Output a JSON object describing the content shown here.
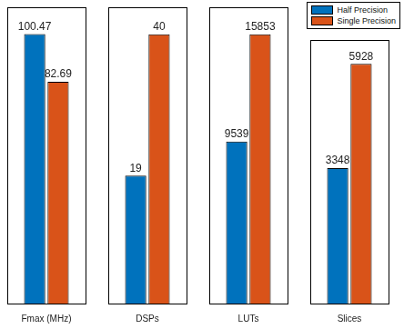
{
  "chart_data": [
    {
      "type": "bar",
      "categories": [
        "Fmax (MHz)"
      ],
      "series": [
        {
          "name": "Half Precision",
          "color": "#0072bd",
          "values": [
            100.47
          ]
        },
        {
          "name": "Single Precision",
          "color": "#d95319",
          "values": [
            82.69
          ]
        }
      ],
      "ylim": [
        0,
        110.5
      ],
      "tick_labels": "x",
      "data_labels": true,
      "grid": false
    },
    {
      "type": "bar",
      "categories": [
        "DSPs"
      ],
      "series": [
        {
          "name": "Half Precision",
          "color": "#0072bd",
          "values": [
            19
          ]
        },
        {
          "name": "Single Precision",
          "color": "#d95319",
          "values": [
            40
          ]
        }
      ],
      "ylim": [
        0,
        44
      ],
      "tick_labels": "x",
      "data_labels": true,
      "grid": false
    },
    {
      "type": "bar",
      "categories": [
        "LUTs"
      ],
      "series": [
        {
          "name": "Half Precision",
          "color": "#0072bd",
          "values": [
            9539
          ]
        },
        {
          "name": "Single Precision",
          "color": "#d95319",
          "values": [
            15853
          ]
        }
      ],
      "ylim": [
        0,
        17438
      ],
      "tick_labels": "x",
      "data_labels": true,
      "grid": false
    },
    {
      "type": "bar",
      "categories": [
        "Slices"
      ],
      "series": [
        {
          "name": "Half Precision",
          "color": "#0072bd",
          "values": [
            3348
          ]
        },
        {
          "name": "Single Precision",
          "color": "#d95319",
          "values": [
            5928
          ]
        }
      ],
      "ylim": [
        0,
        6521
      ],
      "tick_labels": "x",
      "data_labels": true,
      "grid": false,
      "legend": "northeast"
    }
  ]
}
